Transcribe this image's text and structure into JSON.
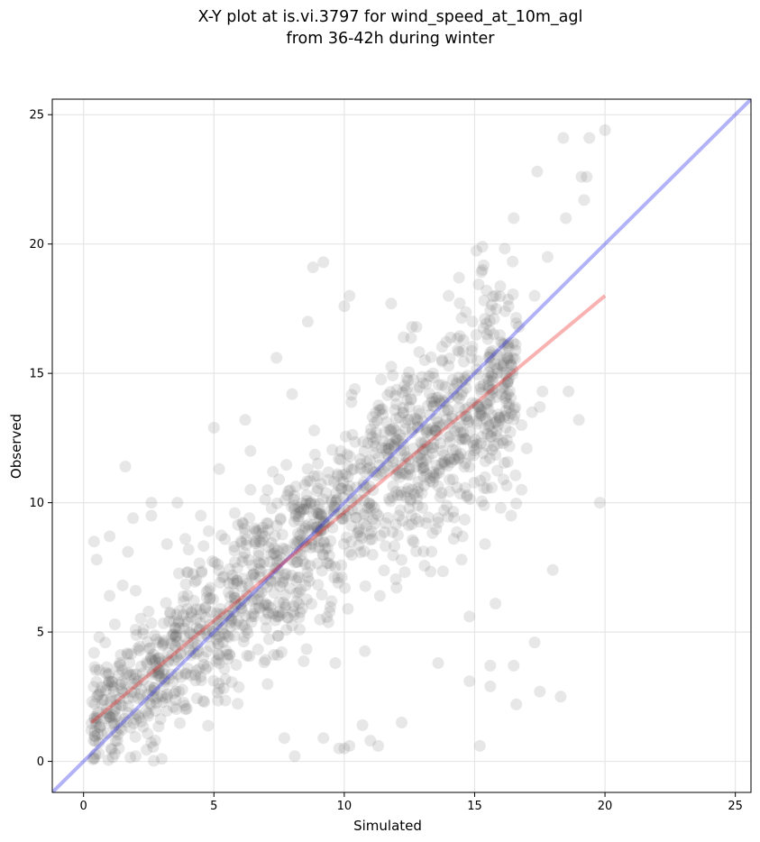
{
  "chart_data": {
    "type": "scatter",
    "title_line1": "X-Y plot at is.vi.3797 for wind_speed_at_10m_agl",
    "title_line2": "from 36-42h during winter",
    "xlabel": "Simulated",
    "ylabel": "Observed",
    "xlim": [
      -1.2,
      25.6
    ],
    "ylim": [
      -1.2,
      25.6
    ],
    "xticks": [
      0,
      5,
      10,
      15,
      20,
      25
    ],
    "yticks": [
      0,
      5,
      10,
      15,
      20,
      25
    ],
    "grid": true,
    "legend": "none",
    "point_color": "#555555",
    "point_opacity": 0.14,
    "lines": [
      {
        "role": "one-to-one",
        "color": "#2222ee",
        "opacity": 0.35,
        "points": [
          [
            -1.2,
            -1.2
          ],
          [
            25.6,
            25.6
          ]
        ]
      },
      {
        "role": "regression",
        "color": "#ee2222",
        "opacity": 0.35,
        "points": [
          [
            0.3,
            1.5
          ],
          [
            20.0,
            18.0
          ]
        ]
      }
    ],
    "points_note_count": 1500,
    "points": [
      [
        0.4,
        8.5
      ],
      [
        0.5,
        7.8
      ],
      [
        1.0,
        8.7
      ],
      [
        1.6,
        11.4
      ],
      [
        1.9,
        9.4
      ],
      [
        2.6,
        9.5
      ],
      [
        2.6,
        10.0
      ],
      [
        3.6,
        10.0
      ],
      [
        4.5,
        9.5
      ],
      [
        5.2,
        11.3
      ],
      [
        5.0,
        12.9
      ],
      [
        6.2,
        13.2
      ],
      [
        6.4,
        12.0
      ],
      [
        7.4,
        15.6
      ],
      [
        8.0,
        14.2
      ],
      [
        8.6,
        17.0
      ],
      [
        8.8,
        19.1
      ],
      [
        9.2,
        19.3
      ],
      [
        10.0,
        17.6
      ],
      [
        10.2,
        18.0
      ],
      [
        11.8,
        17.7
      ],
      [
        12.6,
        16.8
      ],
      [
        14.0,
        18.0
      ],
      [
        15.3,
        19.9
      ],
      [
        15.3,
        19.0
      ],
      [
        14.4,
        18.7
      ],
      [
        16.5,
        21.0
      ],
      [
        17.4,
        22.8
      ],
      [
        17.8,
        19.5
      ],
      [
        18.4,
        24.1
      ],
      [
        18.5,
        21.0
      ],
      [
        19.1,
        22.6
      ],
      [
        19.3,
        22.6
      ],
      [
        19.4,
        24.1
      ],
      [
        20.0,
        24.4
      ],
      [
        19.2,
        21.7
      ],
      [
        19.8,
        10.0
      ],
      [
        19.0,
        13.2
      ],
      [
        18.6,
        14.3
      ],
      [
        18.0,
        7.4
      ],
      [
        17.3,
        4.6
      ],
      [
        17.5,
        2.7
      ],
      [
        18.3,
        2.5
      ],
      [
        16.5,
        3.7
      ],
      [
        16.6,
        2.2
      ],
      [
        15.6,
        2.9
      ],
      [
        15.6,
        3.7
      ],
      [
        15.2,
        0.6
      ],
      [
        14.8,
        3.1
      ],
      [
        14.8,
        5.6
      ],
      [
        15.8,
        6.1
      ],
      [
        13.6,
        3.8
      ],
      [
        12.2,
        1.5
      ],
      [
        11.3,
        0.6
      ],
      [
        11.0,
        0.8
      ],
      [
        10.7,
        1.4
      ],
      [
        10.0,
        0.5
      ],
      [
        10.2,
        0.6
      ],
      [
        9.8,
        0.5
      ],
      [
        8.1,
        0.2
      ],
      [
        7.7,
        0.9
      ],
      [
        9.2,
        0.9
      ],
      [
        1.2,
        0.3
      ],
      [
        2.0,
        0.2
      ],
      [
        3.0,
        0.1
      ],
      [
        0.3,
        1.2
      ],
      [
        0.5,
        2.5
      ],
      [
        0.4,
        4.2
      ],
      [
        0.6,
        4.8
      ],
      [
        1.2,
        5.3
      ],
      [
        1.0,
        6.4
      ],
      [
        1.5,
        6.8
      ],
      [
        2.0,
        6.6
      ],
      [
        1.7,
        8.1
      ],
      [
        3.2,
        8.4
      ],
      [
        3.9,
        8.6
      ],
      [
        4.8,
        8.9
      ],
      [
        5.8,
        9.6
      ],
      [
        6.4,
        10.5
      ],
      [
        7.5,
        10.9
      ],
      [
        12.6,
        10.5
      ],
      [
        13.0,
        9.8
      ],
      [
        13.6,
        9.4
      ],
      [
        14.2,
        8.6
      ],
      [
        14.5,
        7.8
      ],
      [
        15.4,
        8.4
      ],
      [
        16.0,
        9.8
      ],
      [
        16.4,
        9.5
      ],
      [
        16.8,
        10.5
      ],
      [
        17.0,
        12.1
      ],
      [
        17.2,
        13.5
      ],
      [
        17.6,
        14.3
      ],
      [
        17.5,
        13.7
      ],
      [
        16.8,
        13.0
      ],
      [
        16.1,
        12.3
      ],
      [
        16.2,
        14.9
      ],
      [
        16.4,
        15.3
      ],
      [
        16.7,
        16.8
      ],
      [
        17.3,
        18.0
      ],
      [
        16.3,
        17.6
      ]
    ]
  }
}
